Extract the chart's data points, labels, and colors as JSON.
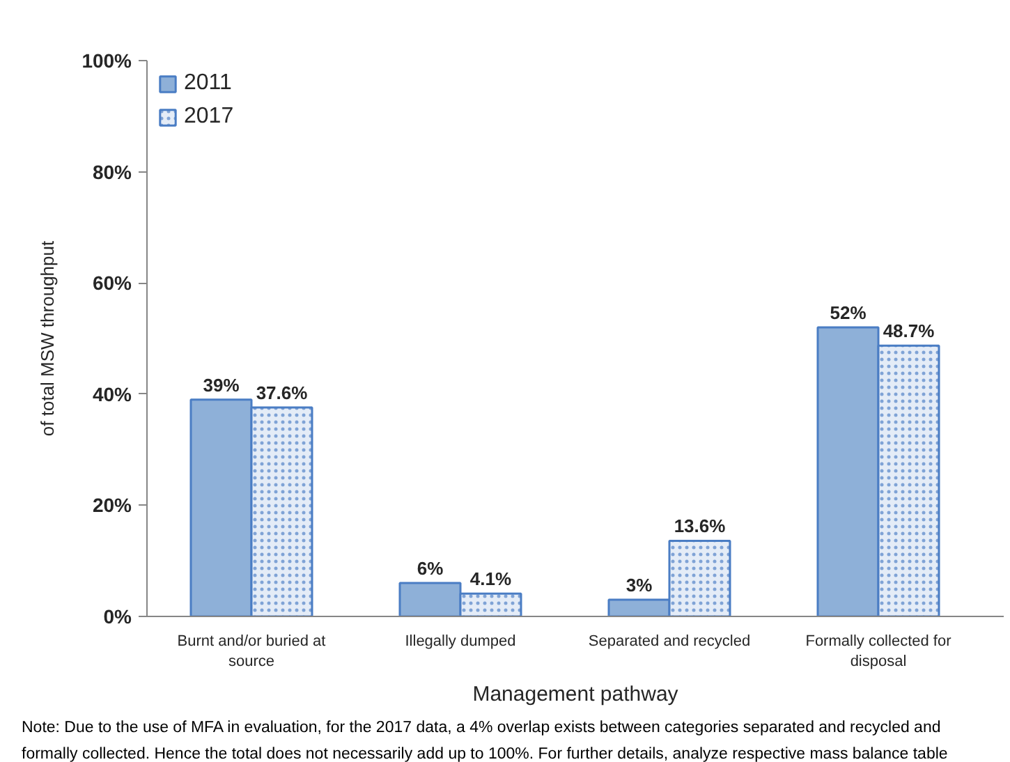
{
  "chart_data": {
    "type": "bar",
    "xlabel": "Management pathway",
    "ylabel": "of total MSW throughput",
    "categories": [
      "Burnt and/or buried at source",
      "Illegally dumped",
      "Separated and recycled",
      "Formally collected for disposal"
    ],
    "series": [
      {
        "name": "2011",
        "color": "#8eb0d8",
        "values": [
          39,
          6,
          3,
          52
        ],
        "value_labels": [
          "39%",
          "6%",
          "3%",
          "52%"
        ]
      },
      {
        "name": "2017",
        "color": "#e4ecf7",
        "values": [
          37.6,
          4.1,
          13.6,
          48.7
        ],
        "value_labels": [
          "37.6%",
          "4.1%",
          "13.6%",
          "48.7%"
        ]
      }
    ],
    "ylim": [
      0,
      100
    ],
    "yticks": [
      {
        "value": 0,
        "label": "0%"
      },
      {
        "value": 20,
        "label": "20%"
      },
      {
        "value": 40,
        "label": "40%"
      },
      {
        "value": 60,
        "label": "60%"
      },
      {
        "value": 80,
        "label": "80%"
      },
      {
        "value": 100,
        "label": "100%"
      }
    ],
    "grid": false,
    "legend": "top left",
    "annotations": [
      "Note: Due to the use of MFA in evaluation, for the 2017 data, a 4% overlap exists between categories separated and recycled and formally collected. Hence the total does not necessarily add up to 100%. For further details, analyze respective mass balance table"
    ]
  }
}
